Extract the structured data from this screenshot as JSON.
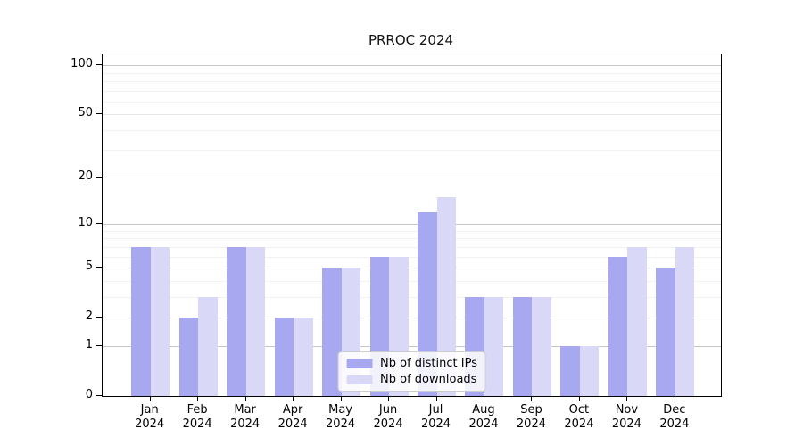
{
  "title": "PRROC 2024",
  "colors": {
    "background": "#ffffff",
    "axis": "#000000",
    "grid_decade": "#c6c6c6",
    "grid_major": "#e7e7e7",
    "grid_minor": "#f2f2f2",
    "series_distinct_ips": "#a8a8f0",
    "series_downloads": "#d9d9f7"
  },
  "chart_data": {
    "type": "bar",
    "title": "PRROC 2024",
    "categories": [
      "Jan",
      "Feb",
      "Mar",
      "Apr",
      "May",
      "Jun",
      "Jul",
      "Aug",
      "Sep",
      "Oct",
      "Nov",
      "Dec"
    ],
    "category_year": "2024",
    "series": [
      {
        "name": "Nb of distinct IPs",
        "color": "#a8a8f0",
        "values": [
          7,
          2,
          7,
          2,
          5,
          6,
          12,
          3,
          3,
          1,
          6,
          5
        ]
      },
      {
        "name": "Nb of downloads",
        "color": "#d9d9f7",
        "values": [
          7,
          3,
          7,
          2,
          5,
          6,
          15,
          3,
          3,
          1,
          7,
          7
        ]
      }
    ],
    "xlabel": "",
    "ylabel": "",
    "yscale": "log1p",
    "y_ticks": [
      0,
      1,
      2,
      5,
      10,
      20,
      50,
      100
    ],
    "y_minor_gridlines": [
      3,
      4,
      6,
      7,
      8,
      9,
      30,
      40,
      60,
      70,
      80,
      90
    ],
    "ylim": [
      0,
      118
    ],
    "grid": "horizontal-both",
    "legend_position": "lower center"
  }
}
